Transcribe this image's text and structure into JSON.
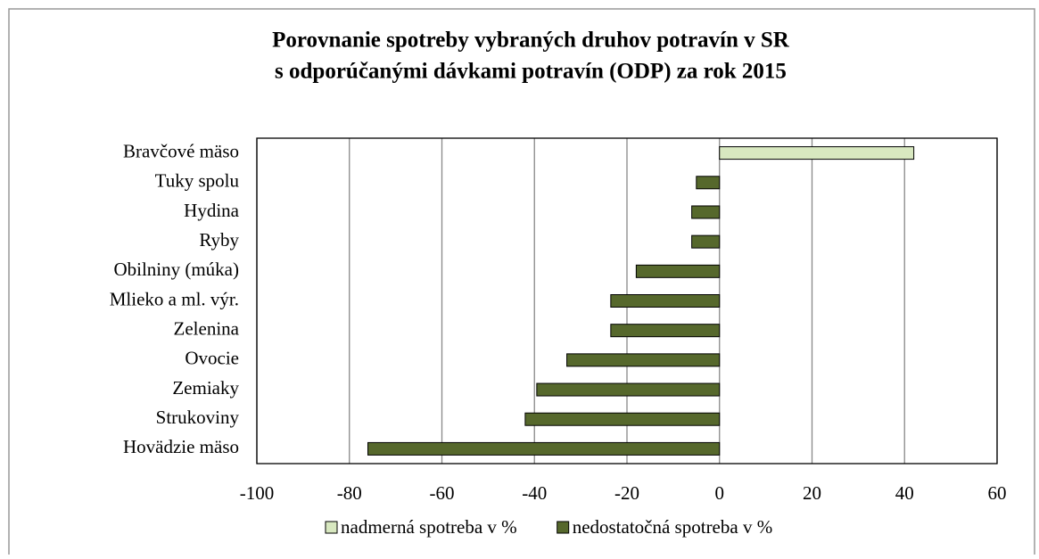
{
  "chart_data": {
    "type": "bar",
    "orientation": "horizontal",
    "title": "Porovnanie spotreby vybraných druhov potravín v SR",
    "subtitle": "s odporúčanými dávkami potravín (ODP) za rok 2015",
    "categories": [
      "Bravčové mäso",
      "Tuky spolu",
      "Hydina",
      "Ryby",
      "Obilniny (múka)",
      "Mlieko a ml. výr.",
      "Zelenina",
      "Ovocie",
      "Zemiaky",
      "Strukoviny",
      "Hovädzie mäso"
    ],
    "series": [
      {
        "name": "nadmerná spotreba v %",
        "color": "#d8e8c0",
        "values": [
          42,
          null,
          null,
          null,
          null,
          null,
          null,
          null,
          null,
          null,
          null
        ]
      },
      {
        "name": "nedostatočná spotreba v %",
        "color": "#56682c",
        "values": [
          null,
          -5,
          -6,
          -6,
          -18,
          -23.5,
          -23.5,
          -33,
          -39.5,
          -42,
          -76
        ]
      }
    ],
    "xlim": [
      -100,
      60
    ],
    "xticks": [
      -100,
      -80,
      -60,
      -40,
      -20,
      0,
      20,
      40,
      60
    ],
    "grid": true,
    "legend": "bottom"
  }
}
